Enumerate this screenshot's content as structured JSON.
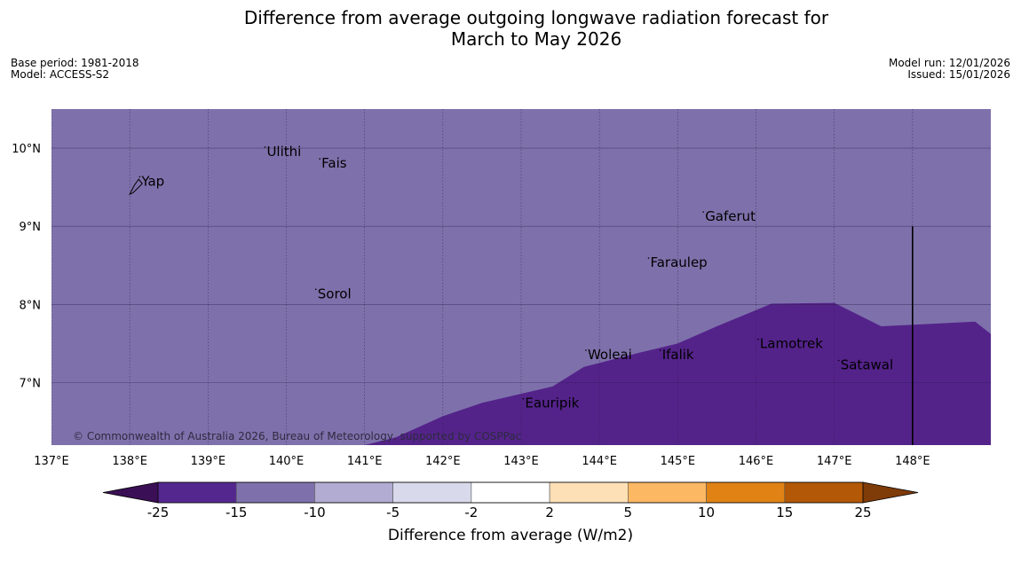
{
  "title": {
    "line1": "Difference from average outgoing longwave radiation forecast for",
    "line2": "March to May 2026"
  },
  "meta": {
    "base_period": "Base period: 1981-2018",
    "model": "Model: ACCESS-S2",
    "model_run": "Model run: 12/01/2026",
    "issued": "Issued: 15/01/2026"
  },
  "map": {
    "lon_range": [
      137,
      149
    ],
    "lat_range": [
      6.2,
      10.5
    ],
    "lon_ticks": [
      {
        "value": 137,
        "label": "137°E"
      },
      {
        "value": 138,
        "label": "138°E"
      },
      {
        "value": 139,
        "label": "139°E"
      },
      {
        "value": 140,
        "label": "140°E"
      },
      {
        "value": 141,
        "label": "141°E"
      },
      {
        "value": 142,
        "label": "142°E"
      },
      {
        "value": 143,
        "label": "143°E"
      },
      {
        "value": 144,
        "label": "144°E"
      },
      {
        "value": 145,
        "label": "145°E"
      },
      {
        "value": 146,
        "label": "146°E"
      },
      {
        "value": 147,
        "label": "147°E"
      },
      {
        "value": 148,
        "label": "148°E"
      }
    ],
    "lat_ticks": [
      {
        "value": 10,
        "label": "10°N"
      },
      {
        "value": 9,
        "label": "9°N"
      },
      {
        "value": 8,
        "label": "8°N"
      },
      {
        "value": 7,
        "label": "7°N"
      }
    ],
    "background_category": "-15 to -10",
    "background_color": "#7e71ab",
    "region_category": "-25 to -15",
    "region_color": "#54238a",
    "region_boundary": [
      [
        141.0,
        6.2
      ],
      [
        141.4,
        6.3
      ],
      [
        142.0,
        6.57
      ],
      [
        142.5,
        6.74
      ],
      [
        143.4,
        6.95
      ],
      [
        143.8,
        7.2
      ],
      [
        144.5,
        7.38
      ],
      [
        145.0,
        7.5
      ],
      [
        145.5,
        7.72
      ],
      [
        146.2,
        8.01
      ],
      [
        147.0,
        8.02
      ],
      [
        147.6,
        7.72
      ],
      [
        148.8,
        7.78
      ],
      [
        149.0,
        7.62
      ],
      [
        149.0,
        6.2
      ]
    ],
    "boundary_line": {
      "lon": 148.0,
      "lat_top": 9.0
    },
    "places": [
      {
        "name": "Yap",
        "lon": 138.15,
        "lat": 9.52
      },
      {
        "name": "Ulithi",
        "lon": 139.75,
        "lat": 9.9
      },
      {
        "name": "Fais",
        "lon": 140.45,
        "lat": 9.75
      },
      {
        "name": "Gaferut",
        "lon": 145.35,
        "lat": 9.07
      },
      {
        "name": "Faraulep",
        "lon": 144.65,
        "lat": 8.48
      },
      {
        "name": "Sorol",
        "lon": 140.4,
        "lat": 8.08
      },
      {
        "name": "Woleai",
        "lon": 143.85,
        "lat": 7.3
      },
      {
        "name": "Ifalik",
        "lon": 144.8,
        "lat": 7.3
      },
      {
        "name": "Lamotrek",
        "lon": 146.05,
        "lat": 7.44
      },
      {
        "name": "Satawal",
        "lon": 147.08,
        "lat": 7.17
      },
      {
        "name": "Eauripik",
        "lon": 143.05,
        "lat": 6.68
      }
    ],
    "copyright": "© Commonwealth of Australia 2026, Bureau of Meteorology, supported by COSPPac"
  },
  "colorbar": {
    "label": "Difference from average (W/m2)",
    "low_extend_color": "#3b0f56",
    "high_extend_color": "#7f3b08",
    "bins": [
      {
        "from": -25,
        "to": -15,
        "color": "#54278f"
      },
      {
        "from": -15,
        "to": -10,
        "color": "#7e71ab"
      },
      {
        "from": -10,
        "to": -5,
        "color": "#b2abd2"
      },
      {
        "from": -5,
        "to": -2,
        "color": "#d8daeb"
      },
      {
        "from": -2,
        "to": 2,
        "color": "#ffffff"
      },
      {
        "from": 2,
        "to": 5,
        "color": "#fee0b6"
      },
      {
        "from": 5,
        "to": 10,
        "color": "#fdb863"
      },
      {
        "from": 10,
        "to": 15,
        "color": "#e08214"
      },
      {
        "from": 15,
        "to": 25,
        "color": "#b35806"
      }
    ],
    "tick_labels": [
      "-25",
      "-15",
      "-10",
      "-5",
      "-2",
      "2",
      "5",
      "10",
      "15",
      "25"
    ]
  }
}
